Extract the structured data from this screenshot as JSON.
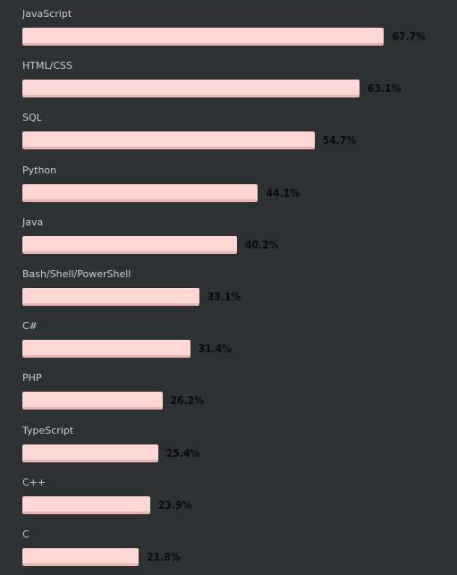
{
  "colors": {
    "background": "#2e3134",
    "bar": "#ffd7d4",
    "bar_edge": "#e9b6b2",
    "label": "#c9ccce",
    "value": "#0b0b0b"
  },
  "chart_data": {
    "type": "bar",
    "orientation": "horizontal",
    "title": "",
    "xlabel": "",
    "ylabel": "",
    "xlim": [
      0,
      77
    ],
    "grid": false,
    "categories": [
      "JavaScript",
      "HTML/CSS",
      "SQL",
      "Python",
      "Java",
      "Bash/Shell/PowerShell",
      "C#",
      "PHP",
      "TypeScript",
      "C++",
      "C"
    ],
    "values": [
      67.7,
      63.1,
      54.7,
      44.1,
      40.2,
      33.1,
      31.4,
      26.2,
      25.4,
      23.9,
      21.8
    ],
    "value_labels": [
      "67.7%",
      "63.1%",
      "54.7%",
      "44.1%",
      "40.2%",
      "33.1%",
      "31.4%",
      "26.2%",
      "25.4%",
      "23.9%",
      "21.8%"
    ]
  }
}
